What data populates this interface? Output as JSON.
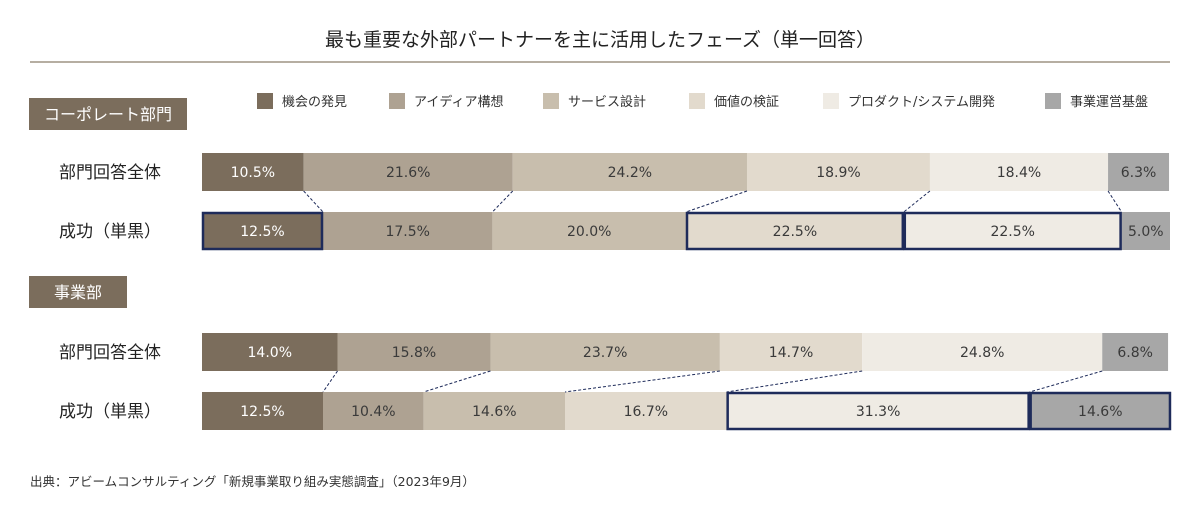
{
  "title": "最も重要な外部パートナーを主に活用したフェーズ（単一回答）",
  "source": "出典：アビームコンサルティング「新規事業取り組み実態調査」（2023年9月）",
  "chart_data": {
    "type": "bar",
    "stacked": "horizontal-100-percent",
    "categories": [
      "機会の発見",
      "アイディア構想",
      "サービス設計",
      "価値の検証",
      "プロダクト/システム開発",
      "事業運営基盤"
    ],
    "colors": [
      "#7b6d5c",
      "#aea292",
      "#c8bead",
      "#e2dacd",
      "#efebe4",
      "#a7a7a7"
    ],
    "legend_position": "top",
    "unit": "%",
    "groups": [
      {
        "name": "コーポレート部門",
        "rows": [
          {
            "label": "部門回答全体",
            "values": [
              10.5,
              21.6,
              24.2,
              18.9,
              18.4,
              6.3
            ],
            "highlight": []
          },
          {
            "label": "成功（単黒）",
            "values": [
              12.5,
              17.5,
              20.0,
              22.5,
              22.5,
              5.0
            ],
            "highlight": [
              0,
              3,
              4
            ]
          }
        ]
      },
      {
        "name": "事業部",
        "rows": [
          {
            "label": "部門回答全体",
            "values": [
              14.0,
              15.8,
              23.7,
              14.7,
              24.8,
              6.8
            ],
            "highlight": []
          },
          {
            "label": "成功（単黒）",
            "values": [
              12.5,
              10.4,
              14.6,
              16.7,
              31.3,
              14.6
            ],
            "highlight": [
              4,
              5
            ]
          }
        ]
      }
    ]
  }
}
